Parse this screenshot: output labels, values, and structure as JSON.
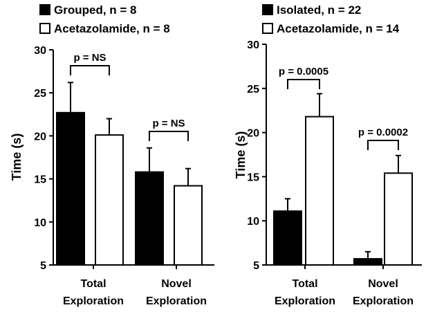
{
  "chart_data": [
    {
      "type": "bar",
      "title": "",
      "xlabel": "",
      "ylabel": "Time (s)",
      "ylim": [
        5,
        30
      ],
      "yticks": [
        5,
        10,
        15,
        20,
        25,
        30
      ],
      "categories": [
        [
          "Total",
          "Exploration"
        ],
        [
          "Novel",
          "Exploration"
        ]
      ],
      "legend_position": "top-left",
      "series": [
        {
          "name": "Grouped, n = 8",
          "color": "#000000",
          "values": [
            22.7,
            15.8
          ],
          "errors": [
            3.5,
            2.8
          ]
        },
        {
          "name": "Acetazolamide, n = 8",
          "color": "#ffffff",
          "values": [
            20.1,
            14.2
          ],
          "errors": [
            1.9,
            2.0
          ]
        }
      ],
      "annotations": [
        "p = NS",
        "p = NS"
      ]
    },
    {
      "type": "bar",
      "title": "",
      "xlabel": "",
      "ylabel": "Time (s)",
      "ylim": [
        5,
        30
      ],
      "yticks": [
        5,
        10,
        15,
        20,
        25,
        30
      ],
      "categories": [
        [
          "Total",
          "Exploration"
        ],
        [
          "Novel",
          "Exploration"
        ]
      ],
      "legend_position": "top-left",
      "series": [
        {
          "name": "Isolated, n = 22",
          "color": "#000000",
          "values": [
            11.1,
            5.7
          ],
          "errors": [
            1.4,
            0.8
          ]
        },
        {
          "name": "Acetazolamide, n = 14",
          "color": "#ffffff",
          "values": [
            21.8,
            15.4
          ],
          "errors": [
            2.6,
            2.0
          ]
        }
      ],
      "annotations": [
        "p = 0.0005",
        "p = 0.0002"
      ]
    }
  ]
}
